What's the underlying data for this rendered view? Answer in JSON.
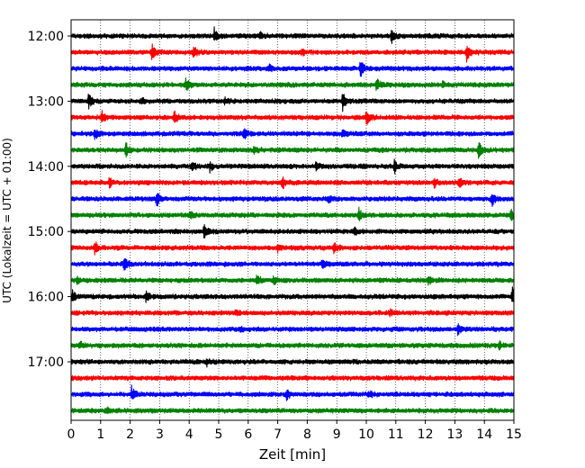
{
  "chart_data": {
    "type": "line",
    "title": "",
    "xlabel": "Zeit  [min]",
    "ylabel": "UTC (Lokalzeit = UTC + 01:00)",
    "xlim": [
      0,
      15
    ],
    "x_ticks": [
      0,
      1,
      2,
      3,
      4,
      5,
      6,
      7,
      8,
      9,
      10,
      11,
      12,
      13,
      14,
      15
    ],
    "y_ticks": [
      "12:00",
      "13:00",
      "14:00",
      "15:00",
      "16:00",
      "17:00"
    ],
    "x_grid": true,
    "trace_interval_minutes": 15,
    "trace_start": "12:00",
    "trace_count": 24,
    "color_cycle": [
      "#000000",
      "#ff0000",
      "#0000ff",
      "#008000"
    ],
    "series": [
      {
        "start": "12:00",
        "color": "#000000",
        "events": [
          {
            "t": 4.85,
            "a": 0.9
          },
          {
            "t": 10.85,
            "a": 0.8
          },
          {
            "t": 6.4,
            "a": 0.35
          }
        ]
      },
      {
        "start": "12:15",
        "color": "#ff0000",
        "events": [
          {
            "t": 2.75,
            "a": 0.9
          },
          {
            "t": 4.15,
            "a": 0.7
          },
          {
            "t": 13.4,
            "a": 1.0
          },
          {
            "t": 7.8,
            "a": 0.4
          }
        ]
      },
      {
        "start": "12:30",
        "color": "#0000ff",
        "events": [
          {
            "t": 9.8,
            "a": 0.9
          },
          {
            "t": 6.7,
            "a": 0.35
          }
        ]
      },
      {
        "start": "12:45",
        "color": "#008000",
        "events": [
          {
            "t": 3.9,
            "a": 0.7
          },
          {
            "t": 10.35,
            "a": 0.7
          },
          {
            "t": 12.6,
            "a": 0.4
          }
        ]
      },
      {
        "start": "13:00",
        "color": "#000000",
        "events": [
          {
            "t": 0.6,
            "a": 0.8
          },
          {
            "t": 9.2,
            "a": 0.9
          },
          {
            "t": 2.4,
            "a": 0.35
          },
          {
            "t": 5.2,
            "a": 0.35
          }
        ]
      },
      {
        "start": "13:15",
        "color": "#ff0000",
        "events": [
          {
            "t": 1.05,
            "a": 0.55
          },
          {
            "t": 3.5,
            "a": 0.6
          },
          {
            "t": 10.0,
            "a": 1.0
          }
        ]
      },
      {
        "start": "13:30",
        "color": "#0000ff",
        "events": [
          {
            "t": 0.8,
            "a": 0.6
          },
          {
            "t": 5.85,
            "a": 0.6
          },
          {
            "t": 9.2,
            "a": 0.4
          }
        ]
      },
      {
        "start": "13:45",
        "color": "#008000",
        "events": [
          {
            "t": 1.85,
            "a": 0.8
          },
          {
            "t": 6.2,
            "a": 0.5
          },
          {
            "t": 13.8,
            "a": 0.8
          }
        ]
      },
      {
        "start": "14:00",
        "color": "#000000",
        "events": [
          {
            "t": 4.1,
            "a": 0.6
          },
          {
            "t": 4.7,
            "a": 0.5
          },
          {
            "t": 10.95,
            "a": 0.8
          },
          {
            "t": 8.3,
            "a": 0.35
          }
        ]
      },
      {
        "start": "14:15",
        "color": "#ff0000",
        "events": [
          {
            "t": 1.3,
            "a": 0.55
          },
          {
            "t": 7.15,
            "a": 0.7
          },
          {
            "t": 13.15,
            "a": 0.5
          },
          {
            "t": 12.3,
            "a": 0.45
          }
        ]
      },
      {
        "start": "14:30",
        "color": "#0000ff",
        "events": [
          {
            "t": 2.9,
            "a": 0.8
          },
          {
            "t": 8.7,
            "a": 0.45
          },
          {
            "t": 14.25,
            "a": 0.7
          }
        ]
      },
      {
        "start": "14:45",
        "color": "#008000",
        "events": [
          {
            "t": 4.05,
            "a": 0.6
          },
          {
            "t": 9.75,
            "a": 0.7
          },
          {
            "t": 14.9,
            "a": 0.6
          }
        ]
      },
      {
        "start": "15:00",
        "color": "#000000",
        "events": [
          {
            "t": 4.5,
            "a": 0.9
          },
          {
            "t": 9.6,
            "a": 0.5
          }
        ]
      },
      {
        "start": "15:15",
        "color": "#ff0000",
        "events": [
          {
            "t": 0.8,
            "a": 0.7
          },
          {
            "t": 7.0,
            "a": 0.4
          },
          {
            "t": 8.9,
            "a": 0.55
          }
        ]
      },
      {
        "start": "15:30",
        "color": "#0000ff",
        "events": [
          {
            "t": 1.8,
            "a": 0.8
          },
          {
            "t": 8.5,
            "a": 0.45
          }
        ]
      },
      {
        "start": "15:45",
        "color": "#008000",
        "events": [
          {
            "t": 6.3,
            "a": 0.7
          },
          {
            "t": 6.85,
            "a": 0.5
          },
          {
            "t": 12.1,
            "a": 0.5
          },
          {
            "t": 0.2,
            "a": 0.4
          }
        ]
      },
      {
        "start": "16:00",
        "color": "#000000",
        "events": [
          {
            "t": 0.05,
            "a": 0.7
          },
          {
            "t": 2.55,
            "a": 0.7
          },
          {
            "t": 14.95,
            "a": 0.85
          }
        ]
      },
      {
        "start": "16:15",
        "color": "#ff0000",
        "events": [
          {
            "t": 5.6,
            "a": 0.3
          },
          {
            "t": 10.8,
            "a": 0.3
          }
        ]
      },
      {
        "start": "16:30",
        "color": "#0000ff",
        "events": [
          {
            "t": 13.1,
            "a": 0.7
          },
          {
            "t": 5.7,
            "a": 0.3
          }
        ]
      },
      {
        "start": "16:45",
        "color": "#008000",
        "events": [
          {
            "t": 0.3,
            "a": 0.4
          },
          {
            "t": 14.5,
            "a": 0.35
          }
        ]
      },
      {
        "start": "17:00",
        "color": "#000000",
        "events": [
          {
            "t": 4.6,
            "a": 0.4
          }
        ]
      },
      {
        "start": "17:15",
        "color": "#ff0000",
        "events": []
      },
      {
        "start": "17:30",
        "color": "#0000ff",
        "events": [
          {
            "t": 2.05,
            "a": 0.8
          },
          {
            "t": 7.3,
            "a": 0.45
          },
          {
            "t": 10.1,
            "a": 0.3
          }
        ]
      },
      {
        "start": "17:45",
        "color": "#008000",
        "events": [
          {
            "t": 1.2,
            "a": 0.3
          }
        ]
      }
    ]
  }
}
